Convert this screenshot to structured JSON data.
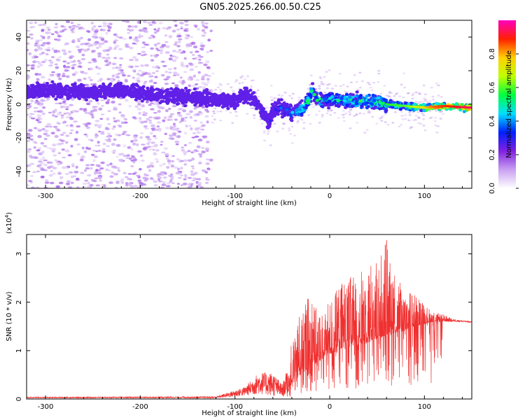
{
  "figure_title": "GN05.2025.266.00.50.C25",
  "chart_data": [
    {
      "type": "heatmap",
      "name": "spectrogram",
      "xlabel": "Height of straight line (km)",
      "ylabel": "Frequency (Hz)",
      "xlim": [
        -320,
        150
      ],
      "ylim": [
        -50,
        50
      ],
      "xticks": [
        -300,
        -200,
        -100,
        0,
        100
      ],
      "yticks": [
        -40,
        -20,
        0,
        20,
        40
      ],
      "xtick_labels": [
        "-300",
        "-200",
        "-100",
        "0",
        "100"
      ],
      "ytick_labels": [
        "-40",
        "-20",
        "0",
        "20",
        "40"
      ],
      "ridge": {
        "x": [
          -320,
          -280,
          -250,
          -220,
          -200,
          -180,
          -160,
          -140,
          -120,
          -100,
          -90,
          -80,
          -70,
          -65,
          -60,
          -50,
          -40,
          -30,
          -25,
          -20,
          -18,
          -15,
          -10,
          0,
          20,
          40,
          60,
          80,
          100,
          120,
          150
        ],
        "y": [
          8,
          8,
          7,
          8,
          7,
          5,
          5,
          4,
          3,
          2,
          6,
          3,
          -5,
          -12,
          -3,
          -2,
          -5,
          -3,
          0,
          5,
          9,
          4,
          2,
          3,
          2,
          2,
          0,
          -1,
          -2,
          -1,
          -2
        ]
      },
      "ridge_amplitude": {
        "x": [
          -320,
          -200,
          -120,
          -100,
          -60,
          -40,
          -20,
          0,
          40,
          80,
          110,
          150
        ],
        "a": [
          0.15,
          0.2,
          0.22,
          0.25,
          0.3,
          0.4,
          0.55,
          0.5,
          0.55,
          0.6,
          0.85,
          0.95
        ]
      },
      "noise_region": {
        "x_from": -320,
        "x_to": -125,
        "description": "scattered low-amplitude noise across full band"
      }
    },
    {
      "type": "line",
      "name": "snr",
      "xlabel": "Height of straight line (km)",
      "ylabel": "SNR (10 * v/v)",
      "y_multiplier": "(x10",
      "y_multiplier_exp": "4",
      "y_multiplier_close": ")",
      "xlim": [
        -320,
        150
      ],
      "ylim": [
        0,
        3.4
      ],
      "xticks": [
        -300,
        -200,
        -100,
        0,
        100
      ],
      "yticks": [
        0,
        1,
        2,
        3
      ],
      "xtick_labels": [
        "-300",
        "-200",
        "-100",
        "0",
        "100"
      ],
      "ytick_labels": [
        "0",
        "1",
        "2",
        "3"
      ],
      "color": "#f03030",
      "envelope": {
        "x": [
          -320,
          -120,
          -105,
          -90,
          -75,
          -60,
          -50,
          -45,
          -40,
          -35,
          -30,
          -25,
          -20,
          -15,
          -10,
          0,
          10,
          20,
          30,
          40,
          50,
          60,
          70,
          80,
          90,
          100,
          110,
          120,
          130,
          150
        ],
        "base": [
          0.02,
          0.02,
          0.04,
          0.06,
          0.1,
          0.06,
          0.04,
          0.1,
          0.3,
          0.4,
          0.5,
          0.6,
          0.7,
          0.7,
          0.8,
          0.9,
          1.0,
          1.05,
          1.1,
          1.15,
          1.25,
          1.3,
          1.35,
          1.4,
          1.5,
          1.55,
          1.6,
          1.6,
          1.6,
          1.58
        ],
        "peak": [
          0.04,
          0.05,
          0.15,
          0.25,
          0.55,
          0.55,
          0.3,
          0.6,
          1.2,
          1.6,
          1.8,
          2.0,
          2.3,
          1.9,
          1.8,
          2.0,
          2.4,
          2.5,
          2.6,
          2.8,
          2.9,
          3.3,
          2.5,
          2.3,
          2.2,
          1.95,
          1.8,
          1.75,
          1.65,
          1.6
        ]
      }
    }
  ],
  "colorbar": {
    "label": "Normalized spectral amplitude",
    "range": [
      0,
      1
    ],
    "ticks": [
      0.0,
      0.2,
      0.4,
      0.6,
      0.8
    ],
    "tick_labels": [
      "0.0",
      "0.2",
      "0.4",
      "0.6",
      "0.8"
    ],
    "colors": [
      "#ffffff",
      "#c8a0f0",
      "#8020e0",
      "#0020ff",
      "#00e0ff",
      "#00ff40",
      "#c0ff00",
      "#ffd000",
      "#ff2000",
      "#ff00c0"
    ]
  }
}
